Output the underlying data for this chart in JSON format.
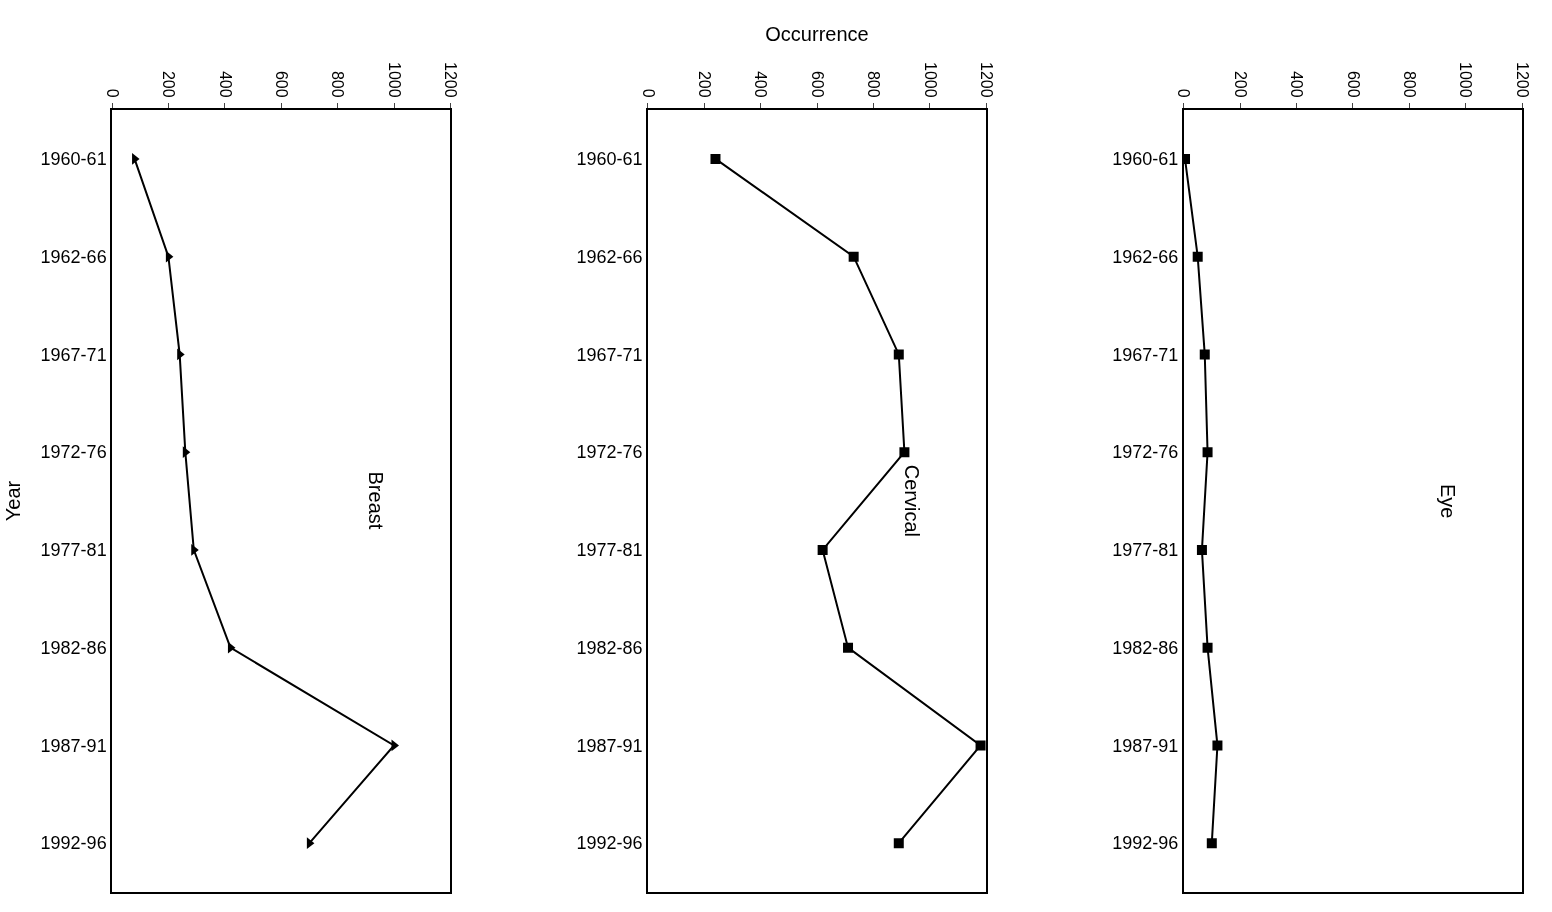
{
  "chart_data": [
    {
      "type": "line",
      "orientation": "horizontal",
      "ylabel": "Year",
      "annotations": [
        "Breast"
      ],
      "categories": [
        "1960-61",
        "1962-66",
        "1967-71",
        "1972-76",
        "1977-81",
        "1982-86",
        "1987-91",
        "1992-96"
      ],
      "series": [
        {
          "color": "#000000",
          "values": [
            80,
            200,
            240,
            260,
            290,
            420,
            1000,
            700
          ]
        }
      ],
      "xlim": [
        0,
        1200
      ],
      "xticks": [
        0,
        200,
        400,
        600,
        800,
        1000,
        1200
      ],
      "marker": "triangle"
    },
    {
      "type": "line",
      "orientation": "horizontal",
      "xlabel": "Occurrence",
      "annotations": [
        "Cervical"
      ],
      "categories": [
        "1960-61",
        "1962-66",
        "1967-71",
        "1972-76",
        "1977-81",
        "1982-86",
        "1987-91",
        "1992-96"
      ],
      "series": [
        {
          "color": "#000000",
          "values": [
            240,
            730,
            890,
            910,
            620,
            710,
            1180,
            890
          ]
        }
      ],
      "xlim": [
        0,
        1200
      ],
      "xticks": [
        0,
        200,
        400,
        600,
        800,
        1000,
        1200
      ],
      "marker": "square"
    },
    {
      "type": "line",
      "orientation": "horizontal",
      "annotations": [
        "Eye"
      ],
      "categories": [
        "1960-61",
        "1962-66",
        "1967-71",
        "1972-76",
        "1977-81",
        "1982-86",
        "1987-91",
        "1992-96"
      ],
      "series": [
        {
          "color": "#000000",
          "values": [
            5,
            50,
            75,
            85,
            65,
            85,
            120,
            100
          ]
        }
      ],
      "xlim": [
        0,
        1200
      ],
      "xticks": [
        0,
        200,
        400,
        600,
        800,
        1000,
        1200
      ],
      "marker": "square"
    }
  ]
}
